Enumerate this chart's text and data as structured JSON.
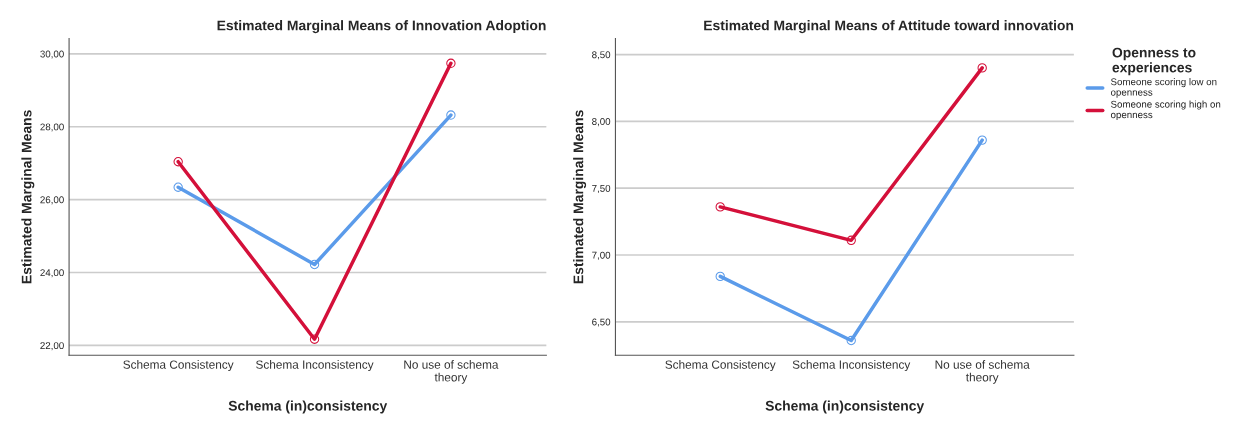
{
  "chart_data": [
    {
      "type": "line",
      "title": "Estimated Marginal Means of Innovation Adoption",
      "xlabel": "Schema (in)consistency",
      "ylabel": "Estimated Marginal Means",
      "categories": [
        "Schema Consistency",
        "Schema Inconsistency",
        "No use of schema\ntheory"
      ],
      "series": [
        {
          "color": "#5b9bea",
          "values": [
            26.34,
            24.22,
            28.32
          ]
        },
        {
          "color": "#d4103a",
          "values": [
            27.04,
            22.17,
            29.74
          ]
        }
      ],
      "ylim": [
        21.73,
        30.42
      ],
      "yticks": [
        {
          "value": 22,
          "label": "22,00"
        },
        {
          "value": 24,
          "label": "24,00"
        },
        {
          "value": 26,
          "label": "26,00"
        },
        {
          "value": 28,
          "label": "28,00"
        },
        {
          "value": 30,
          "label": "30,00"
        }
      ],
      "grid": "y",
      "marker": "circle",
      "line_style": "solid",
      "legend": false
    },
    {
      "type": "line",
      "title": "Estimated Marginal Means of Attitude toward innovation",
      "xlabel": "Schema (in)consistency",
      "ylabel": "Estimated Marginal Means",
      "legend_title": "Openness to\nexperiences",
      "categories": [
        "Schema Consistency",
        "Schema Inconsistency",
        "No use of schema\ntheory"
      ],
      "series": [
        {
          "name": "Someone scoring low on\nopenness",
          "color": "#5b9bea",
          "values": [
            6.84,
            6.36,
            7.86
          ]
        },
        {
          "name": "Someone scoring high on\nopenness",
          "color": "#d4103a",
          "values": [
            7.36,
            7.11,
            8.4
          ]
        }
      ],
      "ylim": [
        6.25,
        8.62
      ],
      "yticks": [
        {
          "value": 6.5,
          "label": "6,50"
        },
        {
          "value": 7,
          "label": "7,00"
        },
        {
          "value": 7.5,
          "label": "7,50"
        },
        {
          "value": 8,
          "label": "8,00"
        },
        {
          "value": 8.5,
          "label": "8,50"
        }
      ],
      "grid": "y",
      "marker": "circle",
      "line_style": "solid",
      "legend": "right"
    }
  ]
}
